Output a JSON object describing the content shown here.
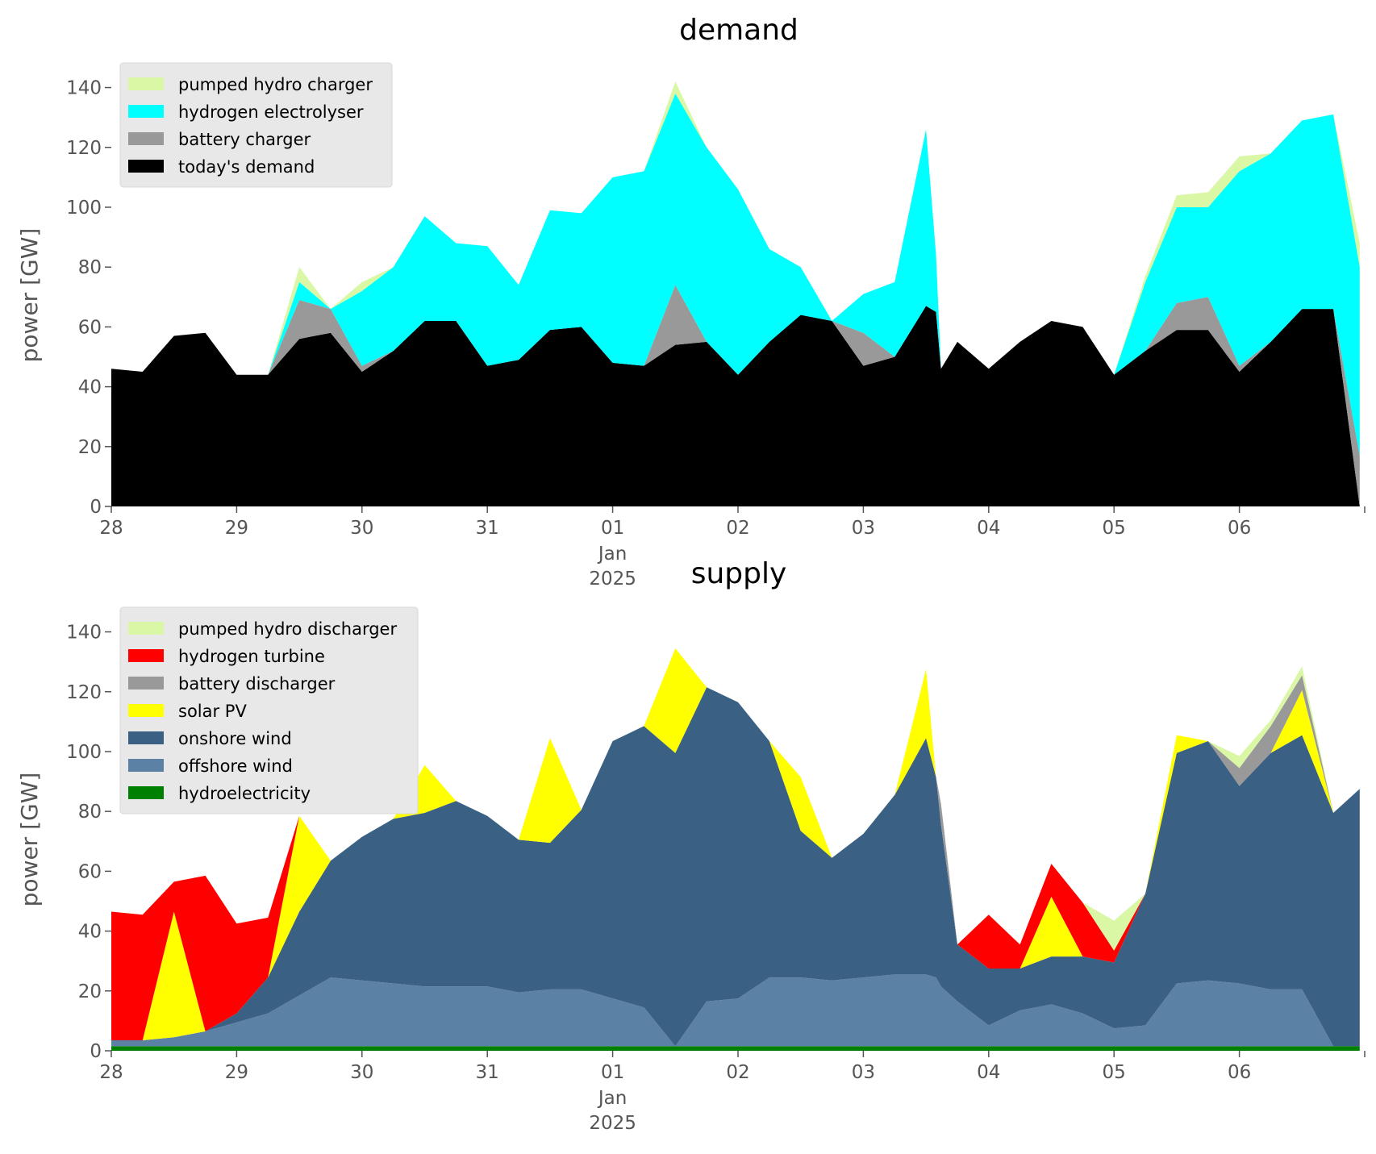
{
  "chart_data": [
    {
      "type": "area",
      "title": "demand",
      "ylabel": "power [GW]",
      "xlabel": "",
      "ylim": [
        0,
        145
      ],
      "yticks": [
        "0",
        "20",
        "40",
        "60",
        "80",
        "100",
        "120",
        "140"
      ],
      "xticks": [
        "28",
        "29",
        "30",
        "31",
        "01",
        "02",
        "03",
        "04",
        "05",
        "06"
      ],
      "xtick_sub": [
        "Jan",
        "2025"
      ],
      "x_start": "2024-12-28",
      "x_end": "2025-01-06 23:00",
      "grid": false,
      "stacked": true,
      "legend_position": "top-left",
      "x": [
        0,
        0.25,
        0.5,
        0.75,
        1,
        1.25,
        1.5,
        1.75,
        2,
        2.25,
        2.5,
        2.75,
        3,
        3.25,
        3.5,
        3.75,
        4,
        4.25,
        4.5,
        4.75,
        5,
        5.25,
        5.5,
        5.75,
        6,
        6.25,
        6.5,
        6.58,
        6.62,
        6.75,
        7,
        7.25,
        7.5,
        7.75,
        8,
        8.25,
        8.5,
        8.75,
        9,
        9.25,
        9.5,
        9.75,
        9.96
      ],
      "series": [
        {
          "name": "today's demand",
          "color": "#000000",
          "values": [
            46,
            45,
            57,
            58,
            44,
            44,
            56,
            58,
            45,
            52,
            62,
            62,
            47,
            49,
            59,
            60,
            48,
            47,
            54,
            55,
            44,
            55,
            64,
            62,
            47,
            50,
            67,
            65,
            46,
            55,
            46,
            55,
            62,
            60,
            44,
            52,
            59,
            59,
            45,
            55,
            66,
            66,
            0
          ]
        },
        {
          "name": "battery charger",
          "color": "#999999",
          "values": [
            0,
            0,
            0,
            0,
            0,
            0,
            13,
            8,
            2,
            0,
            0,
            0,
            0,
            0,
            0,
            0,
            0,
            0,
            20,
            0,
            0,
            0,
            0,
            0,
            11,
            0,
            0,
            0,
            0,
            0,
            0,
            0,
            0,
            0,
            0,
            0,
            9,
            11,
            2,
            0,
            0,
            0,
            17
          ]
        },
        {
          "name": "hydrogen electrolyser",
          "color": "#00ffff",
          "values": [
            0,
            0,
            0,
            0,
            0,
            0,
            6,
            0,
            25,
            28,
            35,
            26,
            40,
            25,
            40,
            38,
            62,
            65,
            64,
            65,
            62,
            31,
            16,
            0,
            13,
            25,
            59,
            19,
            0,
            0,
            0,
            0,
            0,
            0,
            0,
            23,
            32,
            30,
            65,
            63,
            63,
            65,
            63
          ]
        },
        {
          "name": "pumped hydro charger",
          "color": "#d9f7a5",
          "values": [
            0,
            0,
            0,
            0,
            0,
            0,
            5,
            0,
            3,
            0,
            0,
            0,
            0,
            0,
            0,
            0,
            0,
            0,
            4,
            0,
            0,
            0,
            0,
            0,
            0,
            0,
            0,
            0,
            0,
            0,
            0,
            0,
            0,
            0,
            0,
            2,
            4,
            5,
            5,
            0,
            0,
            0,
            8
          ]
        }
      ]
    },
    {
      "type": "area",
      "title": "supply",
      "ylabel": "power [GW]",
      "xlabel": "",
      "ylim": [
        0,
        145
      ],
      "yticks": [
        "0",
        "20",
        "40",
        "60",
        "80",
        "100",
        "120",
        "140"
      ],
      "xticks": [
        "28",
        "29",
        "30",
        "31",
        "01",
        "02",
        "03",
        "04",
        "05",
        "06"
      ],
      "xtick_sub": [
        "Jan",
        "2025"
      ],
      "x_start": "2024-12-28",
      "x_end": "2025-01-06 23:00",
      "grid": false,
      "stacked": true,
      "legend_position": "top-left",
      "x": [
        0,
        0.25,
        0.5,
        0.75,
        1,
        1.25,
        1.5,
        1.75,
        2,
        2.25,
        2.5,
        2.75,
        3,
        3.25,
        3.5,
        3.75,
        4,
        4.25,
        4.5,
        4.75,
        5,
        5.25,
        5.5,
        5.75,
        6,
        6.25,
        6.5,
        6.58,
        6.62,
        6.75,
        7,
        7.25,
        7.5,
        7.75,
        8,
        8.25,
        8.5,
        8.75,
        9,
        9.25,
        9.5,
        9.75,
        9.96
      ],
      "series": [
        {
          "name": "hydroelectricity",
          "color": "#008000",
          "values": [
            1.5,
            1.5,
            1.5,
            1.5,
            1.5,
            1.5,
            1.5,
            1.5,
            1.5,
            1.5,
            1.5,
            1.5,
            1.5,
            1.5,
            1.5,
            1.5,
            1.5,
            1.5,
            1.5,
            1.5,
            1.5,
            1.5,
            1.5,
            1.5,
            1.5,
            1.5,
            1.5,
            1.5,
            1.5,
            1.5,
            1.5,
            1.5,
            1.5,
            1.5,
            1.5,
            1.5,
            1.5,
            1.5,
            1.5,
            1.5,
            1.5,
            1.5,
            1.5
          ]
        },
        {
          "name": "offshore wind",
          "color": "#5b82a4",
          "values": [
            2,
            2,
            3,
            5,
            8,
            11,
            17,
            23,
            22,
            21,
            20,
            20,
            20,
            18,
            19,
            19,
            16,
            13,
            0,
            15,
            16,
            23,
            23,
            22,
            23,
            24,
            24,
            23,
            20,
            15,
            7,
            12,
            14,
            11,
            6,
            7,
            21,
            22,
            21,
            19,
            19,
            0,
            0
          ]
        },
        {
          "name": "onshore wind",
          "color": "#3a6184",
          "values": [
            0,
            0,
            0,
            0,
            3,
            12,
            28,
            39,
            48,
            55,
            58,
            62,
            57,
            51,
            49,
            60,
            86,
            94,
            98,
            105,
            99,
            79,
            49,
            41,
            48,
            60,
            79,
            67,
            54,
            19,
            19,
            14,
            16,
            19,
            22,
            44,
            77,
            80,
            66,
            79,
            85,
            78,
            86
          ]
        },
        {
          "name": "solar PV",
          "color": "#ffff00",
          "values": [
            0,
            0,
            42,
            0,
            0,
            0,
            32,
            0,
            0,
            0,
            16,
            0,
            0,
            0,
            35,
            0,
            0,
            0,
            35,
            0,
            0,
            0,
            18,
            0,
            0,
            0,
            23,
            0,
            0,
            0,
            0,
            0,
            20,
            0,
            0,
            0,
            6,
            0,
            0,
            0,
            15,
            0,
            0
          ]
        },
        {
          "name": "battery discharger",
          "color": "#999999",
          "values": [
            0,
            0,
            0,
            0,
            0,
            0,
            0,
            0,
            0,
            0,
            0,
            0,
            0,
            0,
            0,
            0,
            0,
            0,
            0,
            0,
            0,
            0,
            0,
            0,
            0,
            0,
            0,
            0,
            7,
            0,
            0,
            0,
            0,
            0,
            0,
            0,
            0,
            0,
            6,
            9,
            5,
            0,
            0
          ]
        },
        {
          "name": "hydrogen turbine",
          "color": "#ff0000",
          "values": [
            43,
            42,
            10,
            52,
            30,
            20,
            0,
            0,
            0,
            0,
            0,
            0,
            0,
            0,
            0,
            0,
            0,
            0,
            0,
            0,
            0,
            0,
            0,
            0,
            0,
            0,
            0,
            0,
            0,
            0,
            18,
            8,
            11,
            18,
            4,
            0,
            0,
            0,
            0,
            0,
            0,
            0,
            0
          ]
        },
        {
          "name": "pumped hydro discharger",
          "color": "#d9f7a5",
          "values": [
            0,
            0,
            0,
            0,
            0,
            0,
            0,
            0,
            0,
            0,
            0,
            0,
            0,
            0,
            0,
            0,
            0,
            0,
            0,
            0,
            0,
            0,
            0,
            0,
            0,
            0,
            0,
            0,
            0,
            0,
            0,
            0,
            0,
            0,
            10,
            0,
            0,
            0,
            4,
            2,
            3,
            0,
            0
          ]
        }
      ]
    }
  ]
}
